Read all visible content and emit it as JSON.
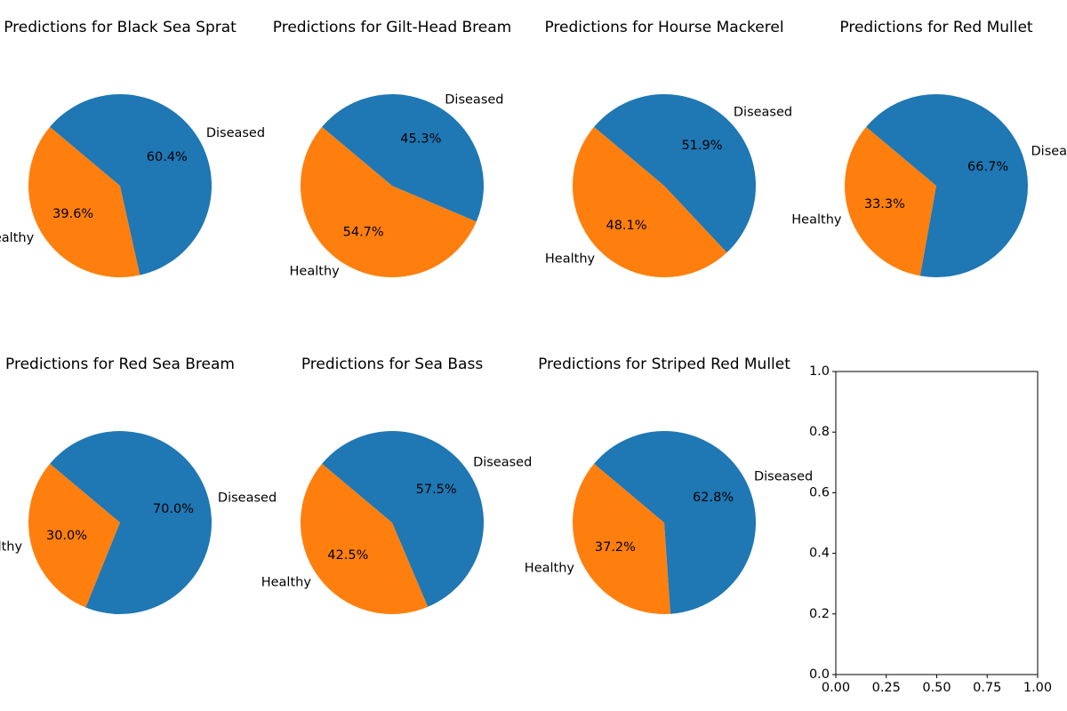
{
  "colors": {
    "diseased": "#1f77b4",
    "healthy": "#ff7f0e"
  },
  "chart_data": [
    {
      "type": "pie",
      "title": "Predictions for Black Sea Sprat",
      "slices": [
        {
          "label": "Healthy",
          "value": 39.6,
          "pct_label": "39.6%"
        },
        {
          "label": "Diseased",
          "value": 60.4,
          "pct_label": "60.4%"
        }
      ]
    },
    {
      "type": "pie",
      "title": "Predictions for Gilt-Head Bream",
      "slices": [
        {
          "label": "Healthy",
          "value": 54.7,
          "pct_label": "54.7%"
        },
        {
          "label": "Diseased",
          "value": 45.3,
          "pct_label": "45.3%"
        }
      ]
    },
    {
      "type": "pie",
      "title": "Predictions for Hourse Mackerel",
      "slices": [
        {
          "label": "Healthy",
          "value": 48.1,
          "pct_label": "48.1%"
        },
        {
          "label": "Diseased",
          "value": 51.9,
          "pct_label": "51.9%"
        }
      ]
    },
    {
      "type": "pie",
      "title": "Predictions for Red Mullet",
      "slices": [
        {
          "label": "Healthy",
          "value": 33.3,
          "pct_label": "33.3%"
        },
        {
          "label": "Diseased",
          "value": 66.7,
          "pct_label": "66.7%"
        }
      ]
    },
    {
      "type": "pie",
      "title": "Predictions for Red Sea Bream",
      "slices": [
        {
          "label": "Healthy",
          "value": 30.0,
          "pct_label": "30.0%"
        },
        {
          "label": "Diseased",
          "value": 70.0,
          "pct_label": "70.0%"
        }
      ]
    },
    {
      "type": "pie",
      "title": "Predictions for Sea Bass",
      "slices": [
        {
          "label": "Healthy",
          "value": 42.5,
          "pct_label": "42.5%"
        },
        {
          "label": "Diseased",
          "value": 57.5,
          "pct_label": "57.5%"
        }
      ]
    },
    {
      "type": "pie",
      "title": "Predictions for Striped Red Mullet",
      "slices": [
        {
          "label": "Healthy",
          "value": 37.2,
          "pct_label": "37.2%"
        },
        {
          "label": "Diseased",
          "value": 62.8,
          "pct_label": "62.8%"
        }
      ]
    },
    {
      "type": "empty_axes",
      "title": "",
      "xlim": [
        0,
        1
      ],
      "ylim": [
        0,
        1
      ],
      "xticks": [
        "0.00",
        "0.25",
        "0.50",
        "0.75",
        "1.00"
      ],
      "yticks": [
        "0.0",
        "0.2",
        "0.4",
        "0.6",
        "0.8",
        "1.0"
      ]
    }
  ]
}
